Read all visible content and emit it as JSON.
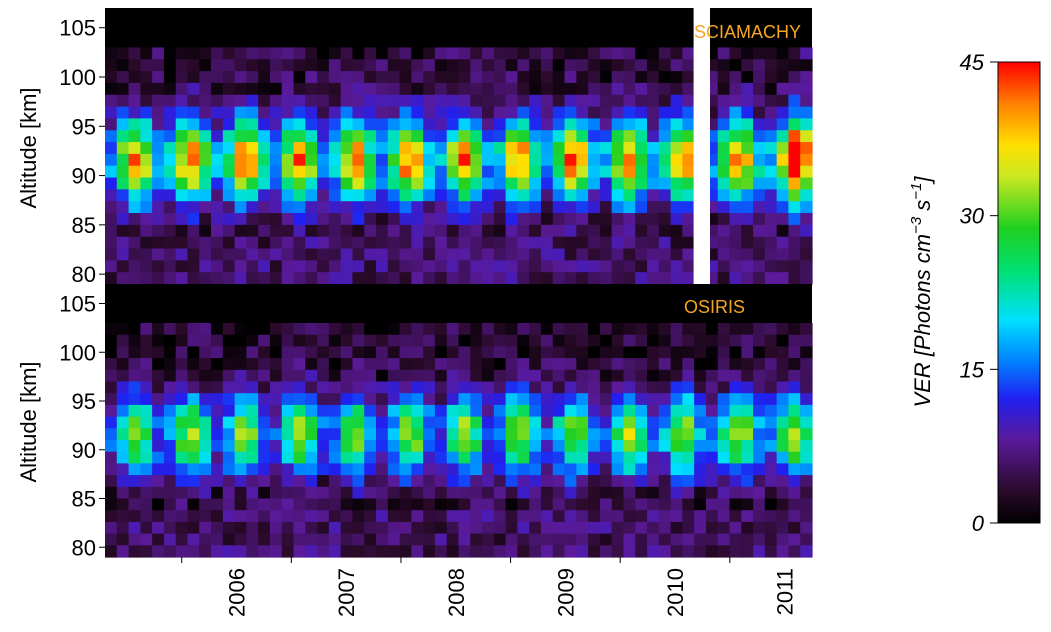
{
  "chart_data": [
    {
      "type": "heatmap",
      "panel_label": "SCIAMACHY",
      "ylabel": "Altitude [km]",
      "yticks": [
        80,
        85,
        90,
        95,
        100,
        105
      ],
      "ylim": [
        79,
        107
      ],
      "xlim": [
        2005.3,
        2011.75
      ],
      "xticks": [
        "2006",
        "2007",
        "2008",
        "2009",
        "2010",
        "2011"
      ],
      "gap": [
        2010.67,
        2010.82
      ]
    },
    {
      "type": "heatmap",
      "panel_label": "OSIRIS",
      "ylabel": "Altitude [km]",
      "yticks": [
        80,
        85,
        90,
        95,
        100,
        105
      ],
      "ylim": [
        79,
        107
      ],
      "xlim": [
        2005.3,
        2011.75
      ],
      "xticks": [
        "2006",
        "2007",
        "2008",
        "2009",
        "2010",
        "2011"
      ]
    }
  ],
  "colorbar": {
    "label_prefix": "VER [Photons cm",
    "exp1": "−3",
    "mid": " s",
    "exp2": "−1",
    "suffix": "]",
    "ticks": [
      "0",
      "15",
      "30",
      "45"
    ],
    "range": [
      0,
      45
    ]
  },
  "colors": {
    "panel_label": "#f5a623"
  }
}
